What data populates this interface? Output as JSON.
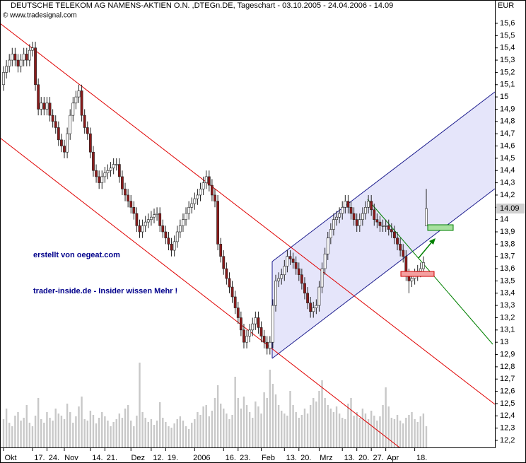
{
  "chart_data": {
    "type": "candlestick",
    "title": "DEUTSCHE TELEKOM AG NAMENS-AKTIEN O.N. ,DTEGn.DE, Tageschart - 03.10.2005 - 24.04.2006 - 14.09",
    "subtitle": "© www.tradesignal.com",
    "y_unit": "EUR",
    "last_price": 14.09,
    "annotations": [
      "erstellt von oegeat.com",
      "trader-inside.de - Insider wissen Mehr !"
    ],
    "categories": [
      "Okt",
      null,
      null,
      null,
      null,
      null,
      null,
      null,
      null,
      null,
      "17.",
      null,
      null,
      null,
      null,
      "24.",
      null,
      null,
      null,
      null,
      null,
      "Nov",
      null,
      null,
      null,
      null,
      null,
      null,
      null,
      null,
      "14.",
      null,
      null,
      null,
      null,
      "21.",
      null,
      null,
      null,
      null,
      null,
      null,
      null,
      null,
      "Dez",
      null,
      null,
      null,
      null,
      null,
      null,
      "12.",
      null,
      null,
      null,
      null,
      "19.",
      null,
      null,
      null,
      null,
      null,
      null,
      null,
      null,
      null,
      "2006",
      null,
      null,
      null,
      null,
      null,
      null,
      null,
      null,
      null,
      "16.",
      null,
      null,
      null,
      null,
      "23.",
      null,
      null,
      null,
      null,
      null,
      null,
      null,
      "Feb",
      null,
      null,
      null,
      null,
      null,
      null,
      null,
      "13.",
      null,
      null,
      null,
      null,
      "20.",
      null,
      null,
      null,
      null,
      null,
      null,
      "Mrz",
      null,
      null,
      null,
      null,
      null,
      null,
      null,
      "13.",
      null,
      null,
      null,
      null,
      "20.",
      null,
      null,
      null,
      null,
      "27.",
      null,
      null,
      null,
      null,
      "Apr",
      null,
      null,
      null,
      null,
      null,
      null,
      null,
      null,
      null,
      "18.",
      null,
      null,
      null,
      null
    ],
    "open": [
      15.1,
      15.2,
      15.25,
      15.3,
      15.35,
      15.3,
      15.25,
      15.3,
      15.35,
      15.3,
      15.38,
      15.4,
      15.1,
      14.9,
      14.95,
      14.9,
      14.95,
      14.85,
      14.8,
      14.75,
      14.65,
      14.6,
      14.55,
      14.7,
      14.85,
      14.95,
      15.0,
      15.05,
      14.85,
      14.75,
      14.7,
      14.55,
      14.4,
      14.35,
      14.3,
      14.35,
      14.38,
      14.4,
      14.42,
      14.45,
      14.45,
      14.35,
      14.25,
      14.2,
      14.15,
      14.1,
      14.05,
      13.95,
      13.9,
      13.95,
      13.98,
      14.0,
      14.02,
      14.04,
      14.05,
      13.95,
      13.9,
      13.85,
      13.8,
      13.75,
      13.82,
      13.9,
      13.95,
      14.0,
      14.05,
      14.1,
      14.13,
      14.17,
      14.2,
      14.25,
      14.3,
      14.35,
      14.28,
      14.2,
      14.15,
      13.8,
      13.7,
      13.6,
      13.52,
      13.45,
      13.37,
      13.28,
      13.2,
      13.1,
      13.0,
      13.05,
      13.1,
      13.15,
      13.2,
      13.12,
      13.05,
      13.0,
      12.95,
      13.0,
      13.3,
      13.5,
      13.52,
      13.55,
      13.62,
      13.7,
      13.68,
      13.65,
      13.6,
      13.55,
      13.48,
      13.4,
      13.32,
      13.25,
      13.28,
      13.3,
      13.45,
      13.6,
      13.72,
      13.85,
      13.92,
      14.0,
      14.02,
      14.05,
      14.1,
      14.15,
      14.1,
      14.05,
      14.0,
      13.95,
      14.0,
      14.05,
      14.1,
      14.15,
      14.08,
      14.0,
      13.98,
      13.95,
      13.95,
      13.95,
      13.92,
      13.9,
      13.85,
      13.8,
      13.75,
      13.7,
      13.55,
      13.5,
      13.52,
      13.55,
      13.58,
      13.6,
      13.95
    ],
    "high": [
      15.25,
      15.3,
      15.35,
      15.4,
      15.4,
      15.35,
      15.35,
      15.4,
      15.4,
      15.43,
      15.45,
      15.45,
      15.15,
      15.0,
      15.0,
      15.0,
      15.0,
      14.9,
      14.85,
      14.8,
      14.7,
      14.65,
      14.75,
      14.9,
      15.0,
      15.05,
      15.1,
      15.1,
      14.9,
      14.8,
      14.75,
      14.6,
      14.45,
      14.4,
      14.4,
      14.43,
      14.45,
      14.47,
      14.5,
      14.5,
      14.5,
      14.4,
      14.3,
      14.25,
      14.2,
      14.15,
      14.1,
      14.0,
      14.0,
      14.03,
      14.05,
      14.07,
      14.09,
      14.1,
      14.1,
      14.0,
      13.95,
      13.9,
      13.85,
      13.87,
      13.95,
      14.0,
      14.05,
      14.1,
      14.15,
      14.18,
      14.22,
      14.25,
      14.3,
      14.35,
      14.4,
      14.4,
      14.33,
      14.25,
      14.2,
      13.85,
      13.75,
      13.65,
      13.57,
      13.5,
      13.42,
      13.33,
      13.25,
      13.15,
      13.1,
      13.15,
      13.2,
      13.25,
      13.25,
      13.17,
      13.1,
      13.05,
      13.05,
      13.35,
      13.55,
      13.57,
      13.6,
      13.67,
      13.75,
      13.75,
      13.73,
      13.7,
      13.65,
      13.6,
      13.53,
      13.45,
      13.37,
      13.33,
      13.35,
      13.5,
      13.65,
      13.77,
      13.9,
      13.97,
      14.05,
      14.07,
      14.1,
      14.15,
      14.2,
      14.2,
      14.15,
      14.1,
      14.05,
      14.05,
      14.1,
      14.15,
      14.2,
      14.2,
      14.13,
      14.05,
      14.03,
      14.0,
      14.0,
      14.0,
      13.97,
      13.95,
      13.9,
      13.85,
      13.8,
      13.75,
      13.6,
      13.57,
      13.6,
      13.63,
      13.65,
      13.7,
      14.25
    ],
    "low": [
      15.05,
      15.15,
      15.2,
      15.25,
      15.25,
      15.2,
      15.2,
      15.25,
      15.25,
      15.25,
      15.33,
      15.05,
      14.85,
      14.85,
      14.85,
      14.85,
      14.8,
      14.75,
      14.7,
      14.6,
      14.55,
      14.5,
      14.5,
      14.65,
      14.8,
      14.9,
      14.95,
      14.8,
      14.7,
      14.65,
      14.5,
      14.35,
      14.3,
      14.25,
      14.25,
      14.3,
      14.33,
      14.35,
      14.37,
      14.4,
      14.3,
      14.2,
      14.15,
      14.1,
      14.05,
      14.0,
      13.9,
      13.85,
      13.85,
      13.9,
      13.93,
      13.95,
      13.97,
      13.99,
      13.9,
      13.85,
      13.8,
      13.75,
      13.7,
      13.7,
      13.77,
      13.85,
      13.9,
      13.95,
      14.0,
      14.05,
      14.08,
      14.12,
      14.15,
      14.2,
      14.25,
      14.23,
      14.15,
      14.1,
      13.75,
      13.65,
      13.55,
      13.47,
      13.4,
      13.32,
      13.23,
      13.15,
      13.05,
      12.95,
      12.95,
      13.0,
      13.05,
      13.1,
      13.07,
      13.0,
      12.95,
      12.9,
      12.9,
      12.95,
      13.25,
      13.45,
      13.47,
      13.5,
      13.57,
      13.63,
      13.6,
      13.55,
      13.5,
      13.43,
      13.35,
      13.27,
      13.2,
      13.2,
      13.23,
      13.25,
      13.4,
      13.55,
      13.67,
      13.8,
      13.87,
      13.95,
      13.97,
      14.0,
      14.05,
      14.05,
      14.0,
      13.95,
      13.9,
      13.9,
      13.95,
      14.0,
      14.05,
      14.03,
      13.95,
      13.93,
      13.9,
      13.9,
      13.9,
      13.87,
      13.85,
      13.8,
      13.75,
      13.7,
      13.65,
      13.5,
      13.4,
      13.45,
      13.47,
      13.5,
      13.53,
      13.55,
      13.95
    ],
    "close": [
      15.2,
      15.25,
      15.3,
      15.35,
      15.3,
      15.25,
      15.3,
      15.35,
      15.3,
      15.38,
      15.4,
      15.1,
      14.9,
      14.95,
      14.9,
      14.95,
      14.85,
      14.8,
      14.75,
      14.65,
      14.6,
      14.55,
      14.7,
      14.85,
      14.95,
      15.0,
      15.05,
      14.85,
      14.75,
      14.7,
      14.55,
      14.4,
      14.35,
      14.3,
      14.35,
      14.38,
      14.4,
      14.42,
      14.45,
      14.45,
      14.35,
      14.25,
      14.2,
      14.15,
      14.1,
      14.05,
      13.95,
      13.9,
      13.95,
      13.98,
      14.0,
      14.02,
      14.04,
      14.05,
      13.95,
      13.9,
      13.85,
      13.8,
      13.75,
      13.82,
      13.9,
      13.95,
      14.0,
      14.05,
      14.1,
      14.13,
      14.17,
      14.2,
      14.25,
      14.3,
      14.35,
      14.28,
      14.2,
      14.15,
      13.8,
      13.7,
      13.6,
      13.52,
      13.45,
      13.37,
      13.28,
      13.2,
      13.1,
      13.0,
      13.05,
      13.1,
      13.15,
      13.2,
      13.12,
      13.05,
      13.0,
      12.95,
      13.0,
      13.3,
      13.5,
      13.52,
      13.55,
      13.62,
      13.7,
      13.68,
      13.65,
      13.6,
      13.55,
      13.48,
      13.4,
      13.32,
      13.25,
      13.28,
      13.3,
      13.45,
      13.6,
      13.72,
      13.85,
      13.92,
      14.0,
      14.02,
      14.05,
      14.1,
      14.15,
      14.1,
      14.05,
      14.0,
      13.95,
      14.0,
      14.05,
      14.1,
      14.15,
      14.08,
      14.0,
      13.98,
      13.95,
      13.95,
      13.95,
      13.92,
      13.9,
      13.85,
      13.8,
      13.75,
      13.7,
      13.55,
      13.5,
      13.52,
      13.55,
      13.58,
      13.6,
      13.65,
      14.09
    ],
    "volume": [
      40,
      55,
      35,
      30,
      45,
      50,
      38,
      42,
      60,
      35,
      30,
      45,
      70,
      40,
      35,
      50,
      42,
      38,
      55,
      48,
      45,
      40,
      62,
      50,
      35,
      44,
      58,
      72,
      40,
      38,
      52,
      46,
      34,
      42,
      50,
      44,
      38,
      30,
      36,
      40,
      48,
      42,
      55,
      60,
      38,
      30,
      45,
      120,
      50,
      42,
      36,
      40,
      32,
      38,
      64,
      42,
      36,
      30,
      28,
      34,
      40,
      44,
      38,
      30,
      26,
      35,
      40,
      50,
      46,
      58,
      60,
      44,
      52,
      70,
      88,
      62,
      55,
      48,
      40,
      46,
      100,
      70,
      55,
      72,
      60,
      50,
      42,
      65,
      58,
      48,
      78,
      70,
      110,
      90,
      75,
      60,
      52,
      48,
      45,
      80,
      60,
      50,
      42,
      46,
      55,
      48,
      60,
      70,
      65,
      80,
      95,
      70,
      60,
      55,
      50,
      58,
      48,
      42,
      40,
      62,
      70,
      45,
      50,
      42,
      55,
      48,
      40,
      52,
      45,
      38,
      44,
      60,
      85,
      58,
      42,
      40,
      46,
      38,
      34,
      42,
      46,
      50,
      40,
      36,
      44,
      48,
      30
    ],
    "up_color": "#ffffff",
    "down_color": "#8b1a1a",
    "volume_color": "#c8c8c8",
    "ylim": [
      12.2,
      15.6
    ],
    "yticks": [
      {
        "value": 15.6,
        "label": "15,6"
      },
      {
        "value": 15.5,
        "label": "15,5"
      },
      {
        "value": 15.4,
        "label": "15,4"
      },
      {
        "value": 15.3,
        "label": "15,3"
      },
      {
        "value": 15.2,
        "label": "15,2"
      },
      {
        "value": 15.1,
        "label": "15,1"
      },
      15,
      {
        "value": 14.9,
        "label": "14,9"
      },
      {
        "value": 14.8,
        "label": "14,8"
      },
      {
        "value": 14.7,
        "label": "14,7"
      },
      {
        "value": 14.6,
        "label": "14,6"
      },
      {
        "value": 14.5,
        "label": "14,5"
      },
      {
        "value": 14.4,
        "label": "14,4"
      },
      {
        "value": 14.3,
        "label": "14,3"
      },
      {
        "value": 14.2,
        "label": "14,2"
      },
      {
        "value": 14.1,
        "label": "14,1"
      },
      14,
      {
        "value": 13.9,
        "label": "13,9"
      },
      {
        "value": 13.8,
        "label": "13,8"
      },
      {
        "value": 13.7,
        "label": "13,7"
      },
      {
        "value": 13.6,
        "label": "13,6"
      },
      {
        "value": 13.5,
        "label": "13,5"
      },
      {
        "value": 13.4,
        "label": "13,4"
      },
      {
        "value": 13.3,
        "label": "13,3"
      },
      {
        "value": 13.2,
        "label": "13,2"
      },
      {
        "value": 13.1,
        "label": "13,1"
      },
      13,
      {
        "value": 12.9,
        "label": "12,9"
      },
      {
        "value": 12.8,
        "label": "12,8"
      },
      {
        "value": 12.7,
        "label": "12,7"
      },
      {
        "value": 12.6,
        "label": "12,6"
      },
      {
        "value": 12.5,
        "label": "12,5"
      },
      {
        "value": 12.4,
        "label": "12,4"
      },
      {
        "value": 12.3,
        "label": "12,3"
      },
      {
        "value": 12.2,
        "label": "12,2"
      }
    ]
  }
}
